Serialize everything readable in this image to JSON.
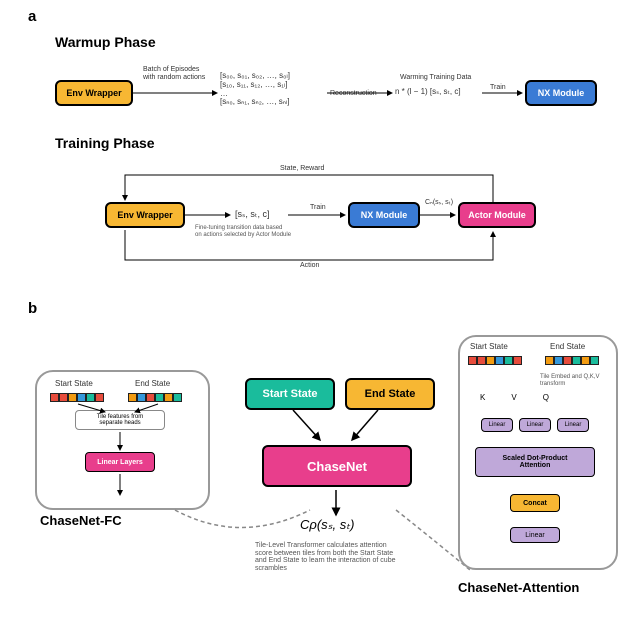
{
  "panel_a": {
    "label": "a",
    "warmup": {
      "title": "Warmup Phase",
      "env_wrapper": {
        "label": "Env Wrapper",
        "bg": "#f7b733",
        "border": "#000"
      },
      "batch_caption": "Batch of Episodes\nwith random actions",
      "episodes_matrix": "[s₀₀, s₀₁, s₀₂, …, s₀ₗ]\n[s₁₀, s₁₁, s₁₂, …, s₁ₗ]\n…\n[sₙ₀, sₙ₁, sₙ₂, …, sₙₗ]",
      "reconstruction": "Reconstruction",
      "warming_data": "Warming Training Data",
      "formula": "n * (l − 1)  [sₛ, sₜ, c]",
      "train_label": "Train",
      "nx_module": {
        "label": "NX Module",
        "bg": "#3a7bd5",
        "border": "#000"
      }
    },
    "training": {
      "title": "Training Phase",
      "env_wrapper": {
        "label": "Env Wrapper",
        "bg": "#f7b733"
      },
      "tuple": "[sₛ, sₜ, c]",
      "fine_tuning_caption": "Fine-tuning transition data based\non actions selected by Actor Module",
      "train_label": "Train",
      "nx_module": {
        "label": "NX Module",
        "bg": "#3a7bd5"
      },
      "actor_module": {
        "label": "Actor Module",
        "bg": "#e83e8c"
      },
      "c_label": "Cₙ(sₛ, sₜ)",
      "state_reward": "State, Reward",
      "action": "Action"
    }
  },
  "panel_b": {
    "label": "b",
    "fc": {
      "title": "ChaseNet-FC",
      "start_state": "Start State",
      "end_state": "End State",
      "tile_caption": "Tile features from\nseparate heads",
      "linear_layers": {
        "label": "Linear Layers",
        "bg": "#e83e8c"
      },
      "tiles_start": [
        "#e74c3c",
        "#e74c3c",
        "#f39c12",
        "#3498db",
        "#1abc9c",
        "#e74c3c"
      ],
      "tiles_end": [
        "#f39c12",
        "#3498db",
        "#e74c3c",
        "#1abc9c",
        "#f39c12",
        "#1abc9c"
      ]
    },
    "center": {
      "start_state": {
        "label": "Start State",
        "bg": "#1abc9c"
      },
      "end_state": {
        "label": "End State",
        "bg": "#f7b733"
      },
      "chasenet": {
        "label": "ChaseNet",
        "bg": "#e83e8c"
      },
      "output": "Cρ(sₛ, sₜ)",
      "caption": "Tile-Level Transformer calculates attention\nscore between tiles from both the Start State\nand End State to learn the interaction of cube\nscrambles"
    },
    "attn": {
      "title": "ChaseNet-Attention",
      "start_state": "Start State",
      "end_state": "End State",
      "tile_caption": "Tile Embed and Q,K,V\ntransform",
      "kqv": [
        "K",
        "V",
        "Q"
      ],
      "linear": {
        "label": "Linear",
        "bg": "#bfa8d9"
      },
      "attention": {
        "label": "Scaled Dot-Product\nAttention",
        "bg": "#bfa8d9"
      },
      "concat": {
        "label": "Concat",
        "bg": "#f7b733"
      },
      "linear2": {
        "label": "Linear",
        "bg": "#bfa8d9"
      },
      "tiles_start": [
        "#e74c3c",
        "#e74c3c",
        "#f39c12",
        "#3498db",
        "#1abc9c",
        "#e74c3c"
      ],
      "tiles_end": [
        "#f39c12",
        "#3498db",
        "#e74c3c",
        "#1abc9c",
        "#f39c12",
        "#1abc9c"
      ]
    }
  },
  "colors": {
    "dash": "#888"
  }
}
